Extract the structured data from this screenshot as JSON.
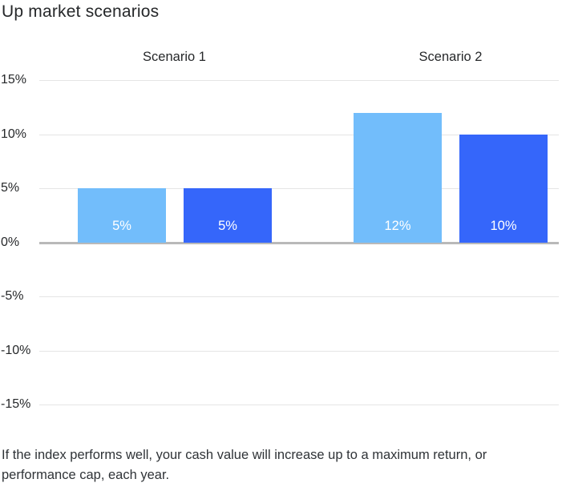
{
  "chart_data": {
    "type": "bar",
    "title": "Up market scenarios",
    "categories": [
      "Scenario 1",
      "Scenario 2"
    ],
    "series": [
      {
        "name": "light-blue-series",
        "color": "#72bdfb",
        "values": [
          5,
          12
        ],
        "labels": [
          "5%",
          "12%"
        ]
      },
      {
        "name": "dark-blue-series",
        "color": "#3566fa",
        "values": [
          5,
          10
        ],
        "labels": [
          "5%",
          "10%"
        ]
      }
    ],
    "y_axis": {
      "range": [
        -15,
        15
      ],
      "ticks": [
        {
          "label": "15%",
          "value": 15
        },
        {
          "label": "10%",
          "value": 10
        },
        {
          "label": "5%",
          "value": 5
        },
        {
          "label": "0%",
          "value": 0
        },
        {
          "label": "-5%",
          "value": -5
        },
        {
          "label": "-10%",
          "value": -10
        },
        {
          "label": "-15%",
          "value": -15
        }
      ]
    },
    "grid": true,
    "legend": "none",
    "gridline_color": "#e5e5e5",
    "zero_line_color": "#b9b9b9",
    "bar_label_color": "#ffffff",
    "text_color": "#26282a"
  },
  "caption": "If the index performs well, your cash value will increase up to a maximum return, or performance cap, each year."
}
